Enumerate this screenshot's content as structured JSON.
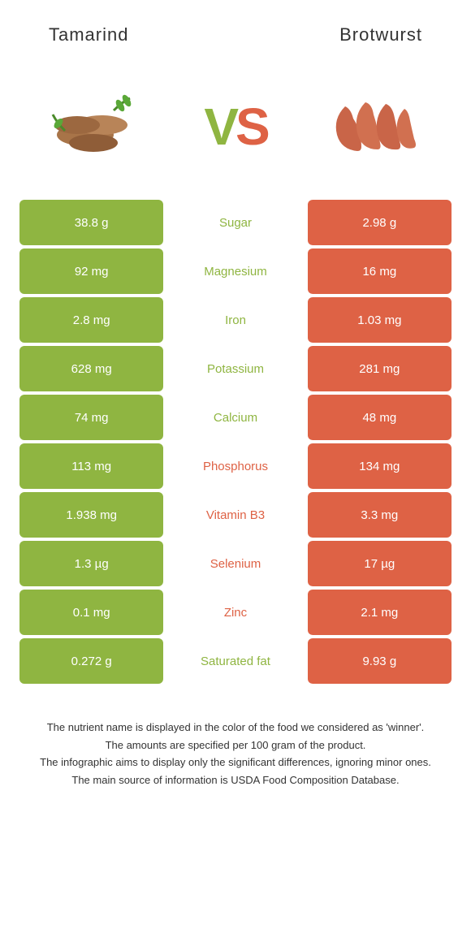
{
  "colors": {
    "green": "#8fb541",
    "orange": "#de6245",
    "text": "#333333",
    "white": "#ffffff"
  },
  "left": {
    "name": "Tamarind"
  },
  "right": {
    "name": "Brotwurst"
  },
  "vs": {
    "v": "V",
    "s": "S"
  },
  "rows": [
    {
      "left": "38.8 g",
      "label": "Sugar",
      "right": "2.98 g",
      "winner": "left"
    },
    {
      "left": "92 mg",
      "label": "Magnesium",
      "right": "16 mg",
      "winner": "left"
    },
    {
      "left": "2.8 mg",
      "label": "Iron",
      "right": "1.03 mg",
      "winner": "left"
    },
    {
      "left": "628 mg",
      "label": "Potassium",
      "right": "281 mg",
      "winner": "left"
    },
    {
      "left": "74 mg",
      "label": "Calcium",
      "right": "48 mg",
      "winner": "left"
    },
    {
      "left": "113 mg",
      "label": "Phosphorus",
      "right": "134 mg",
      "winner": "right"
    },
    {
      "left": "1.938 mg",
      "label": "Vitamin B3",
      "right": "3.3 mg",
      "winner": "right"
    },
    {
      "left": "1.3 µg",
      "label": "Selenium",
      "right": "17 µg",
      "winner": "right"
    },
    {
      "left": "0.1 mg",
      "label": "Zinc",
      "right": "2.1 mg",
      "winner": "right"
    },
    {
      "left": "0.272 g",
      "label": "Saturated fat",
      "right": "9.93 g",
      "winner": "left"
    }
  ],
  "footnotes": [
    "The nutrient name is displayed in the color of the food we considered as 'winner'.",
    "The amounts are specified per 100 gram of the product.",
    "The infographic aims to display only the significant differences, ignoring minor ones.",
    "The main source of information is USDA Food Composition Database."
  ]
}
